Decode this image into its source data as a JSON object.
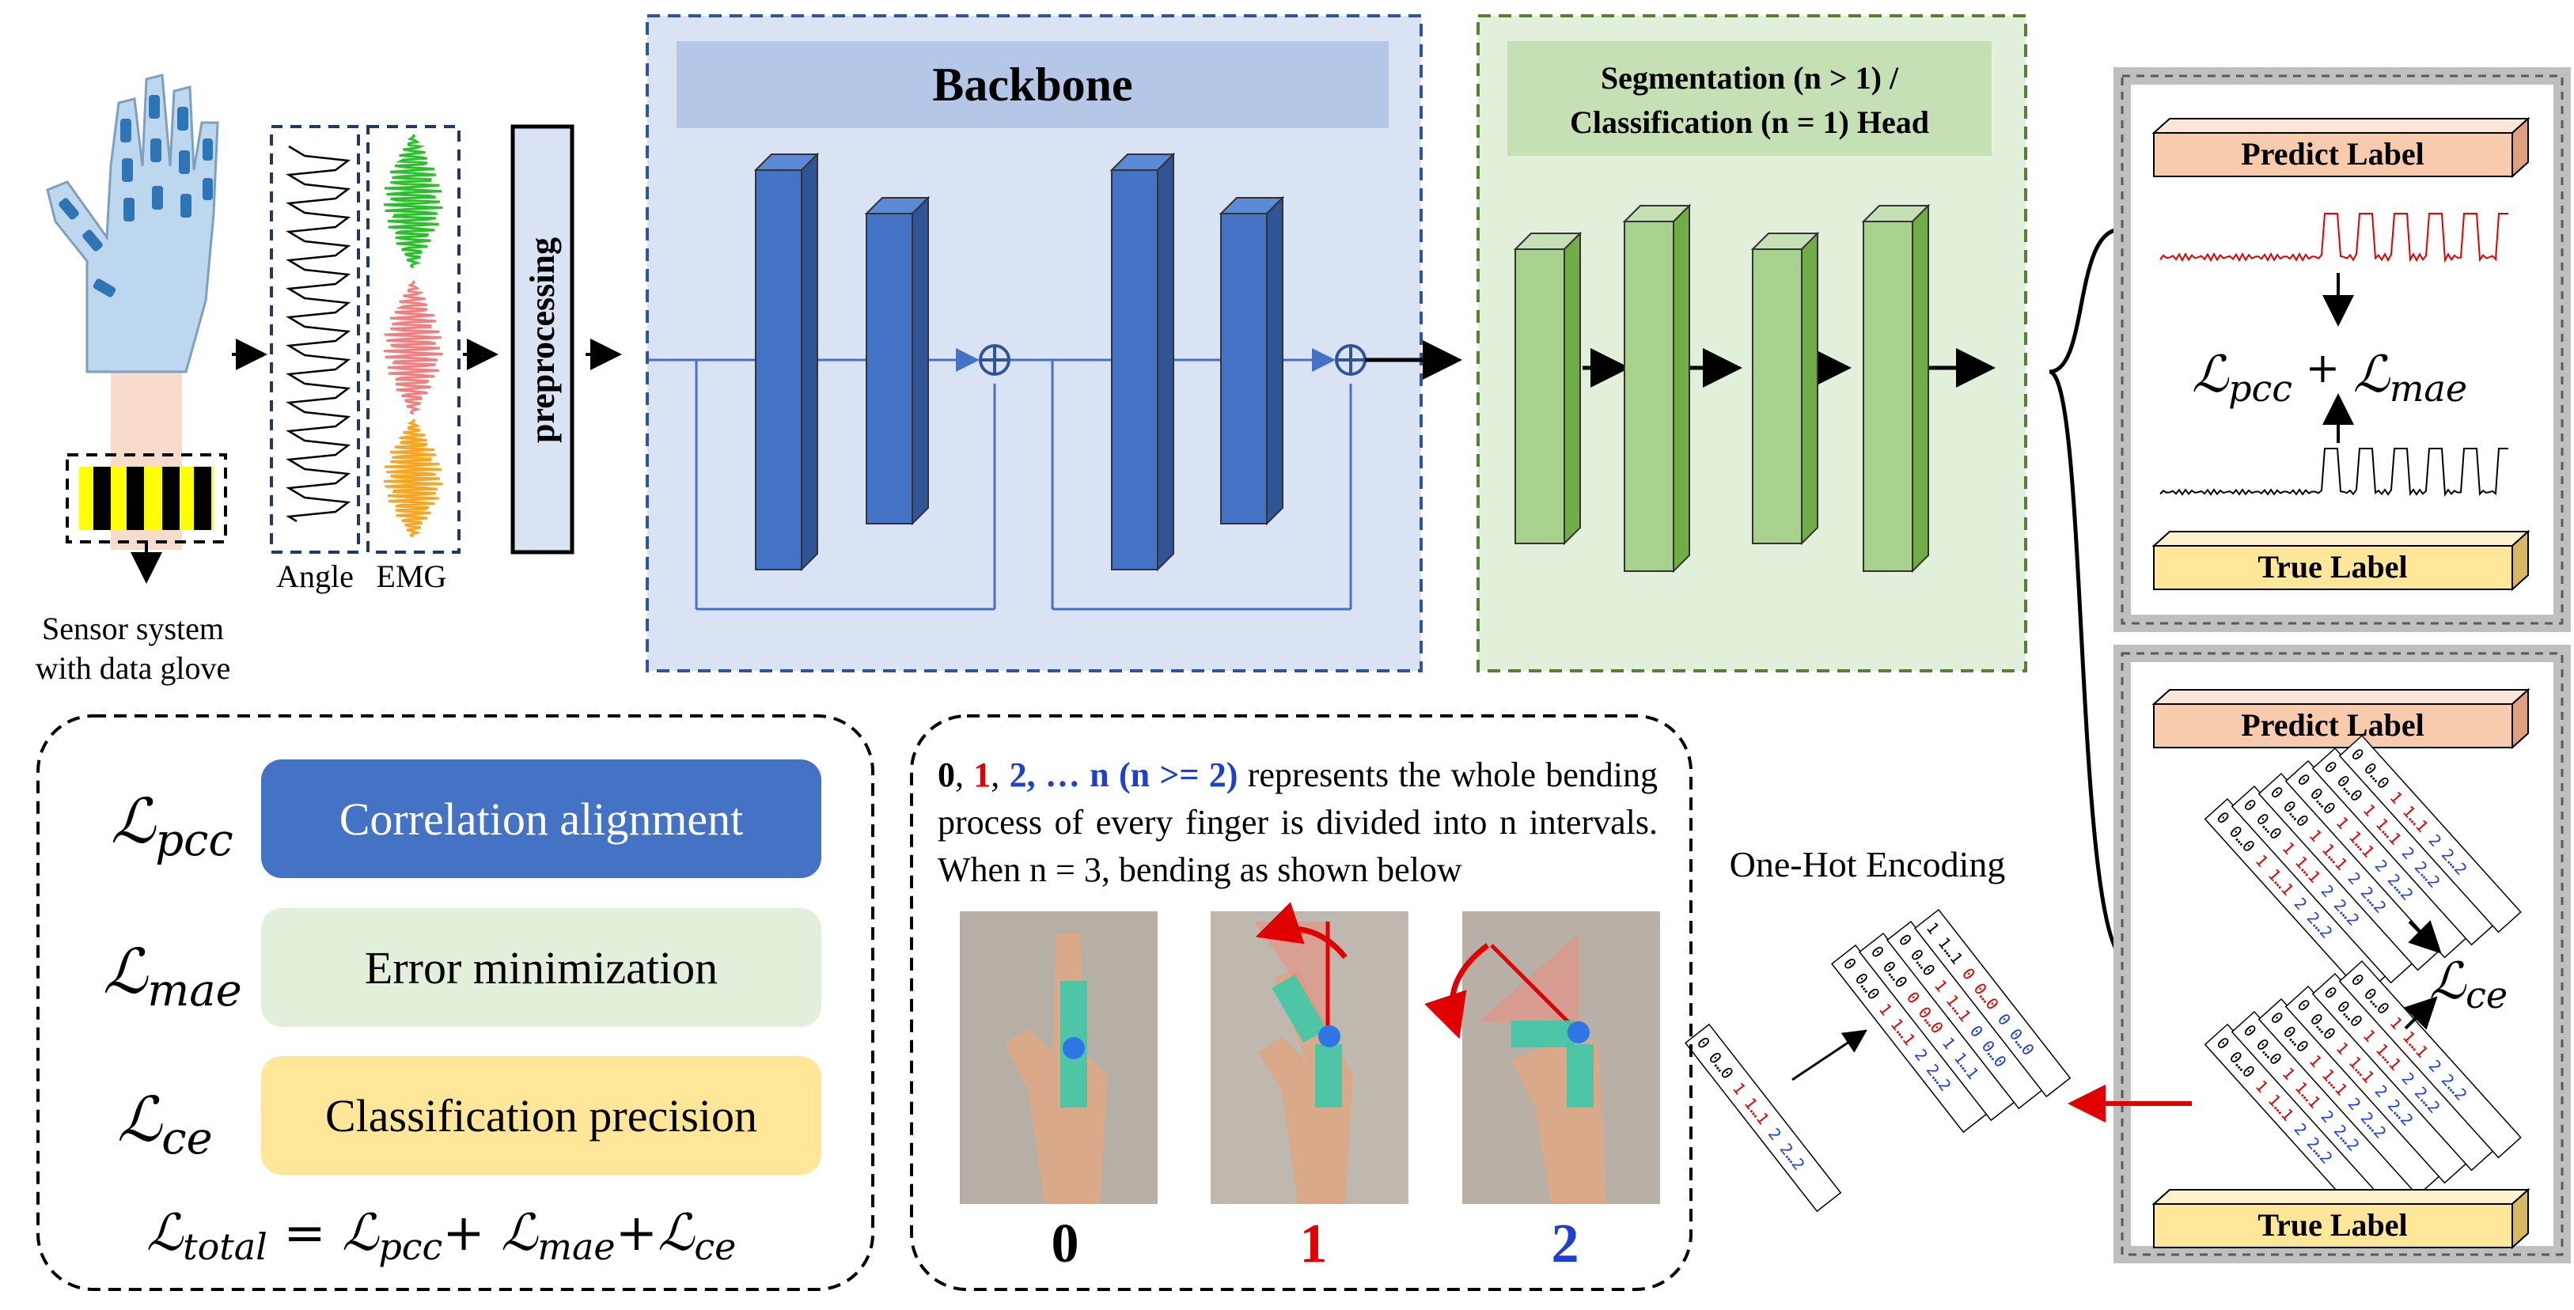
{
  "glove": {
    "caption_line1": "Sensor system",
    "caption_line2": "with data glove"
  },
  "signals": {
    "angle_label": "Angle",
    "emg_label": "EMG"
  },
  "preprocessing_label": "preprocessing",
  "backbone": {
    "title": "Backbone"
  },
  "head": {
    "title_line1": "Segmentation (n > 1) /",
    "title_line2": "Classification (n = 1) Head"
  },
  "output_top": {
    "predict_label": "Predict Label",
    "true_label": "True Label",
    "loss_base": "ℒ",
    "loss_a_sub": "pcc",
    "loss_b_sub": "mae"
  },
  "output_bottom": {
    "predict_label": "Predict Label",
    "true_label": "True Label",
    "loss_sub": "ce"
  },
  "one_hot": {
    "title": "One-Hot Encoding"
  },
  "legend": {
    "items": [
      {
        "sub": "pcc",
        "text": "Correlation alignment",
        "color": "#4472c4"
      },
      {
        "sub": "mae",
        "text": "Error minimization",
        "color": "#e2efda"
      },
      {
        "sub": "ce",
        "text": "Classification precision",
        "color": "#ffe699"
      }
    ],
    "total_sub": "total",
    "total_eq": "= ℒ",
    "total_rest": "pcc"
  },
  "description": {
    "s0": "0",
    "s1": "1",
    "s2": "2, … n (n >= 2)",
    "text_a": " represents the whole bending process of every finger is divided into n intervals. When n = 3, bending as shown below"
  },
  "fingers": {
    "labels": [
      "0",
      "1",
      "2"
    ]
  },
  "colors": {
    "backbone_fill": "#dae3f3",
    "backbone_title_fill": "#b4c7e7",
    "block_blue": "#4472c4",
    "head_fill": "#e2efda",
    "head_title_fill": "#c5e0b4",
    "block_green": "#a9d18e",
    "predict_fill": "#f8cbad",
    "true_fill": "#ffe699",
    "red": "#e00000",
    "blue_text": "#1f3fd0"
  }
}
